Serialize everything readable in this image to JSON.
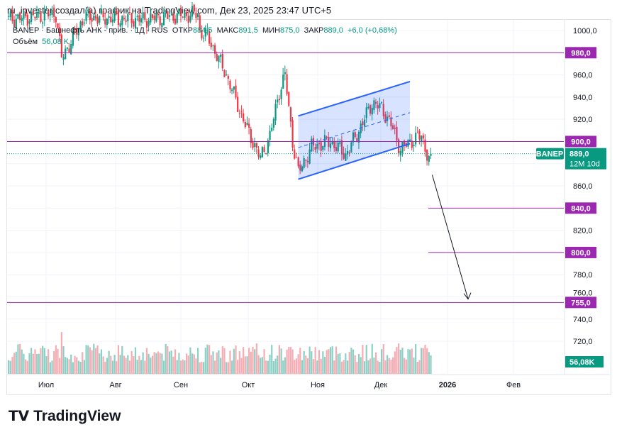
{
  "header": "ru_investor создал(а) график на TradingView.com, Дек 23, 2025 23:47 UTC+5",
  "legend": {
    "symbol": "BANEP · Башнефть АНК - прив. · 1Д · RUS",
    "open_label": "ОТКР",
    "open": "884,5",
    "high_label": "МАКС",
    "high": "891,5",
    "low_label": "МИН",
    "low": "875,0",
    "close_label": "ЗАКР",
    "close": "889,0",
    "change": "+6,0 (+0,68%)",
    "volume_label": "Объём",
    "volume": "56,08 K"
  },
  "logo": "TradingView",
  "chart_data": {
    "type": "candlestick",
    "symbol": "BANEP",
    "interval": "1D",
    "y_ticks": [
      "1000,0",
      "960,0",
      "940,0",
      "920,0",
      "860,0",
      "820,0",
      "780,0",
      "760,0",
      "740,0",
      "720,0"
    ],
    "y_range": [
      717,
      1002
    ],
    "x_ticks": [
      "Июл",
      "Авг",
      "Сен",
      "Окт",
      "Ноя",
      "Дек",
      "2026",
      "Фев"
    ],
    "price_path_keypoints": [
      [
        0,
        1010
      ],
      [
        25,
        1015
      ],
      [
        28,
        975
      ],
      [
        40,
        1012
      ],
      [
        70,
        1010
      ],
      [
        100,
        1015
      ],
      [
        95,
        1005
      ],
      [
        105,
        995
      ],
      [
        115,
        960
      ],
      [
        125,
        915
      ],
      [
        133,
        885
      ],
      [
        138,
        905
      ],
      [
        143,
        945
      ],
      [
        146,
        960
      ],
      [
        150,
        900
      ],
      [
        153,
        872
      ],
      [
        160,
        895
      ],
      [
        170,
        900
      ],
      [
        178,
        888
      ],
      [
        185,
        910
      ],
      [
        192,
        935
      ],
      [
        197,
        930
      ],
      [
        202,
        915
      ],
      [
        207,
        893
      ],
      [
        212,
        900
      ],
      [
        218,
        905
      ],
      [
        222,
        884
      ],
      [
        223,
        889
      ]
    ],
    "volume_spike_index": 28,
    "levels": [
      {
        "label": "980,0",
        "value": 980
      },
      {
        "label": "900,0",
        "value": 900
      },
      {
        "label": "840,0",
        "value": 840
      },
      {
        "label": "800,0",
        "value": 800
      },
      {
        "label": "755,0",
        "value": 755
      }
    ],
    "last_price": {
      "symbol": "BANEP",
      "price": "889,0",
      "countdown": "12M 10d",
      "value": 889
    },
    "volume_last": "56,08K",
    "channel": {
      "lower": [
        [
          153,
          866
        ],
        [
          212,
          898
        ]
      ],
      "upper": [
        [
          153,
          923
        ],
        [
          212,
          954
        ]
      ]
    },
    "arrow_target": 758,
    "colors": {
      "up": "#089981",
      "down": "#f23645",
      "level": "#9c27b0",
      "channel": "#2962ff"
    }
  }
}
